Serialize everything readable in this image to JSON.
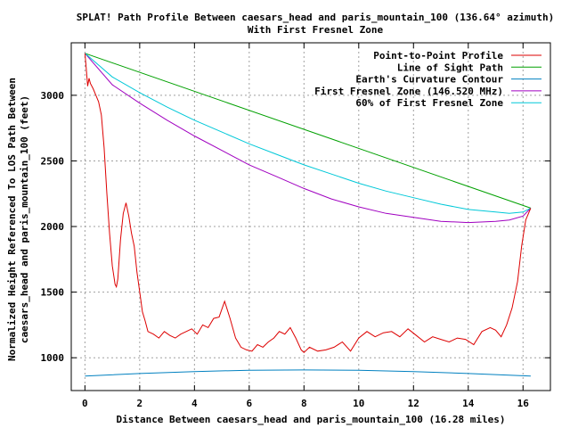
{
  "chart_data": {
    "type": "line",
    "title": "SPLAT! Path Profile Between caesars_head and paris_mountain_100 (136.64° azimuth)",
    "subtitle": "With First Fresnel Zone",
    "xlabel": "Distance Between caesars_head and paris_mountain_100 (16.28 miles)",
    "ylabel_lines": [
      "Normalized Height Referenced To LOS Path Between",
      "caesars_head and paris_mountain_100 (feet)"
    ],
    "xlim": [
      -0.5,
      17
    ],
    "ylim": [
      750,
      3400
    ],
    "x_ticks": [
      0,
      2,
      4,
      6,
      8,
      10,
      12,
      14,
      16
    ],
    "y_ticks": [
      1000,
      1500,
      2000,
      2500,
      3000
    ],
    "grid": true,
    "legend_position": "top-right",
    "series": [
      {
        "name": "Point-to-Point Profile",
        "color": "#dd0000",
        "x": [
          0,
          0.05,
          0.1,
          0.15,
          0.2,
          0.3,
          0.4,
          0.5,
          0.6,
          0.7,
          0.8,
          0.9,
          1.0,
          1.1,
          1.15,
          1.2,
          1.3,
          1.4,
          1.5,
          1.6,
          1.7,
          1.8,
          1.9,
          2.0,
          2.1,
          2.2,
          2.3,
          2.5,
          2.7,
          2.9,
          3.1,
          3.3,
          3.5,
          3.7,
          3.9,
          4.1,
          4.3,
          4.5,
          4.7,
          4.9,
          5.1,
          5.3,
          5.5,
          5.7,
          5.9,
          6.1,
          6.3,
          6.5,
          6.7,
          6.9,
          7.1,
          7.3,
          7.5,
          7.7,
          7.9,
          8.0,
          8.2,
          8.5,
          8.8,
          9.1,
          9.4,
          9.7,
          10.0,
          10.3,
          10.6,
          10.9,
          11.2,
          11.5,
          11.8,
          12.1,
          12.4,
          12.7,
          13.0,
          13.3,
          13.6,
          13.9,
          14.2,
          14.5,
          14.8,
          15.0,
          15.2,
          15.4,
          15.6,
          15.8,
          15.95,
          16.1,
          16.2,
          16.28
        ],
        "values": [
          3320,
          3200,
          3070,
          3130,
          3090,
          3050,
          3000,
          2950,
          2850,
          2600,
          2250,
          1950,
          1700,
          1560,
          1540,
          1600,
          1900,
          2100,
          2180,
          2080,
          1950,
          1850,
          1650,
          1500,
          1350,
          1280,
          1200,
          1180,
          1150,
          1200,
          1170,
          1150,
          1180,
          1200,
          1220,
          1180,
          1250,
          1230,
          1300,
          1310,
          1430,
          1300,
          1150,
          1080,
          1060,
          1050,
          1100,
          1080,
          1120,
          1150,
          1200,
          1180,
          1230,
          1150,
          1060,
          1040,
          1080,
          1050,
          1060,
          1080,
          1120,
          1050,
          1150,
          1200,
          1160,
          1190,
          1200,
          1160,
          1220,
          1170,
          1120,
          1160,
          1140,
          1120,
          1150,
          1140,
          1100,
          1200,
          1230,
          1210,
          1160,
          1250,
          1380,
          1580,
          1850,
          2050,
          2100,
          2140
        ]
      },
      {
        "name": "Line of Sight Path",
        "color": "#00a000",
        "x": [
          0,
          16.28
        ],
        "values": [
          3320,
          2140
        ]
      },
      {
        "name": "Earth's Curvature Contour",
        "color": "#0080c0",
        "x": [
          0,
          2,
          4,
          6,
          8,
          10,
          12,
          14,
          16.28
        ],
        "values": [
          860,
          880,
          895,
          905,
          907,
          905,
          895,
          880,
          860
        ]
      },
      {
        "name": "First Fresnel Zone (146.520 MHz)",
        "color": "#a000c0",
        "x": [
          0,
          1,
          2,
          3,
          4,
          5,
          6,
          7,
          8,
          9,
          10,
          11,
          12,
          13,
          14,
          15,
          15.5,
          16,
          16.28
        ],
        "values": [
          3320,
          3080,
          2940,
          2810,
          2690,
          2580,
          2470,
          2380,
          2290,
          2210,
          2150,
          2100,
          2070,
          2040,
          2030,
          2040,
          2050,
          2080,
          2140
        ]
      },
      {
        "name": "60% of First Fresnel Zone",
        "color": "#00c8d8",
        "x": [
          0,
          1,
          2,
          3,
          4,
          5,
          6,
          7,
          8,
          9,
          10,
          11,
          12,
          13,
          14,
          15,
          15.5,
          16,
          16.28
        ],
        "values": [
          3320,
          3140,
          3020,
          2910,
          2810,
          2720,
          2630,
          2550,
          2470,
          2400,
          2330,
          2270,
          2220,
          2170,
          2130,
          2110,
          2100,
          2110,
          2140
        ]
      }
    ]
  }
}
